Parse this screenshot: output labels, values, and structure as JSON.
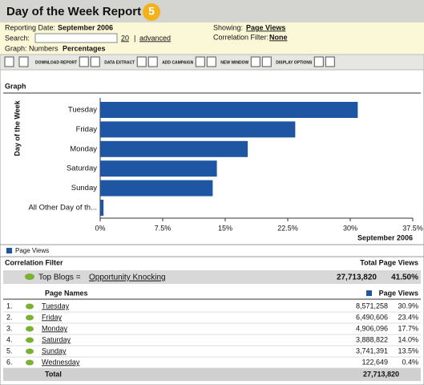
{
  "header": {
    "title": "Day of the Week Report",
    "badge": "5"
  },
  "info": {
    "reporting_date_label": "Reporting Date:",
    "reporting_date": "September 2006",
    "showing_label": "Showing:",
    "showing": "Page Views",
    "search_label": "Search:",
    "search_count": "20",
    "separator": "|",
    "advanced": "advanced",
    "correlation_filter_label": "Correlation Filter:",
    "correlation_filter": "None",
    "graph_label": "Graph:",
    "graph_numbers": "Numbers",
    "graph_percentages": "Percentages"
  },
  "toolbar": [
    "DOWNLOAD REPORT",
    "DATA EXTRACT",
    "ADD CAMPAIGN",
    "NEW WINDOW",
    "DISPLAY OPTIONS"
  ],
  "section": "Graph",
  "chart_data": {
    "type": "bar",
    "orientation": "horizontal",
    "y_label": "Day of the Week",
    "x_label": "September 2006",
    "categories": [
      "Tuesday",
      "Friday",
      "Monday",
      "Saturday",
      "Sunday",
      "All Other Day of th..."
    ],
    "series": [
      {
        "name": "Page Views",
        "color": "#1f56a3",
        "values": [
          30.9,
          23.4,
          17.7,
          14.0,
          13.5,
          0.4
        ]
      }
    ],
    "xlim": [
      0,
      37.5
    ],
    "xticks": [
      {
        "value": 0,
        "label": "0%"
      },
      {
        "value": 7.5,
        "label": "7.5%"
      },
      {
        "value": 15,
        "label": "15%"
      },
      {
        "value": 22.5,
        "label": "22.5%"
      },
      {
        "value": 30,
        "label": "30%"
      },
      {
        "value": 37.5,
        "label": "37.5%"
      }
    ]
  },
  "correlation": {
    "header": "Correlation Filter",
    "total_header": "Total Page Views",
    "filter_name": "Top Blogs =",
    "filter_value": "Opportunity Knocking",
    "total": "27,713,820",
    "percent": "41.50%"
  },
  "table": {
    "headers": [
      "Page Names",
      "Page Views"
    ],
    "rows": [
      [
        "1.",
        "Tuesday",
        "8,571,258",
        "30.9%"
      ],
      [
        "2.",
        "Friday",
        "6,490,606",
        "23.4%"
      ],
      [
        "3.",
        "Monday",
        "4,906,096",
        "17.7%"
      ],
      [
        "4.",
        "Saturday",
        "3,888,822",
        "14.0%"
      ],
      [
        "5.",
        "Sunday",
        "3,741,391",
        "13.5%"
      ],
      [
        "6.",
        "Wednesday",
        "122,649",
        "0.4%"
      ]
    ],
    "total_label": "Total",
    "total": "27,713,820"
  }
}
